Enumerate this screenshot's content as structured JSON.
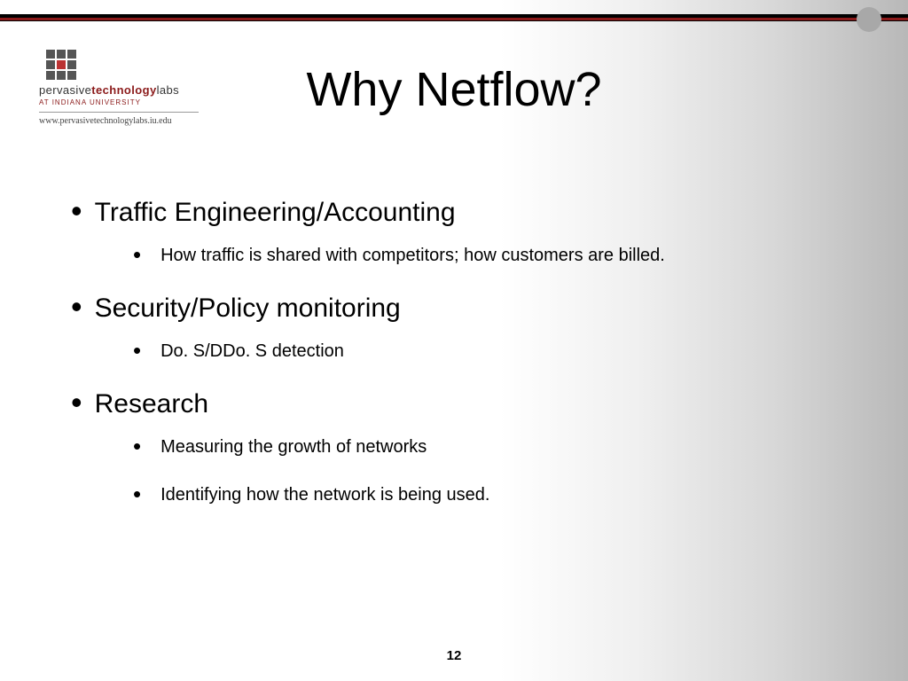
{
  "colors": {
    "accent_bar": "#8b1a1a",
    "accent_bar_border": "#000000",
    "dot": "#a8a8a8",
    "bg_gradient_start": "#ffffff",
    "bg_gradient_end": "#b8b8b8"
  },
  "logo": {
    "line1_plain": "pervasive",
    "line1_bold": "technology",
    "line1_suffix": "labs",
    "line2": "AT INDIANA UNIVERSITY",
    "url": "www.pervasivetechnologylabs.iu.edu"
  },
  "title": "Why Netflow?",
  "bullets": [
    {
      "text": "Traffic Engineering/Accounting",
      "children": [
        "How traffic is shared with competitors; how customers are billed."
      ]
    },
    {
      "text": "Security/Policy monitoring",
      "children": [
        "Do. S/DDo. S detection"
      ]
    },
    {
      "text": "Research",
      "children": [
        "Measuring the growth of networks",
        "Identifying how the network is being used."
      ]
    }
  ],
  "page_number": "12"
}
